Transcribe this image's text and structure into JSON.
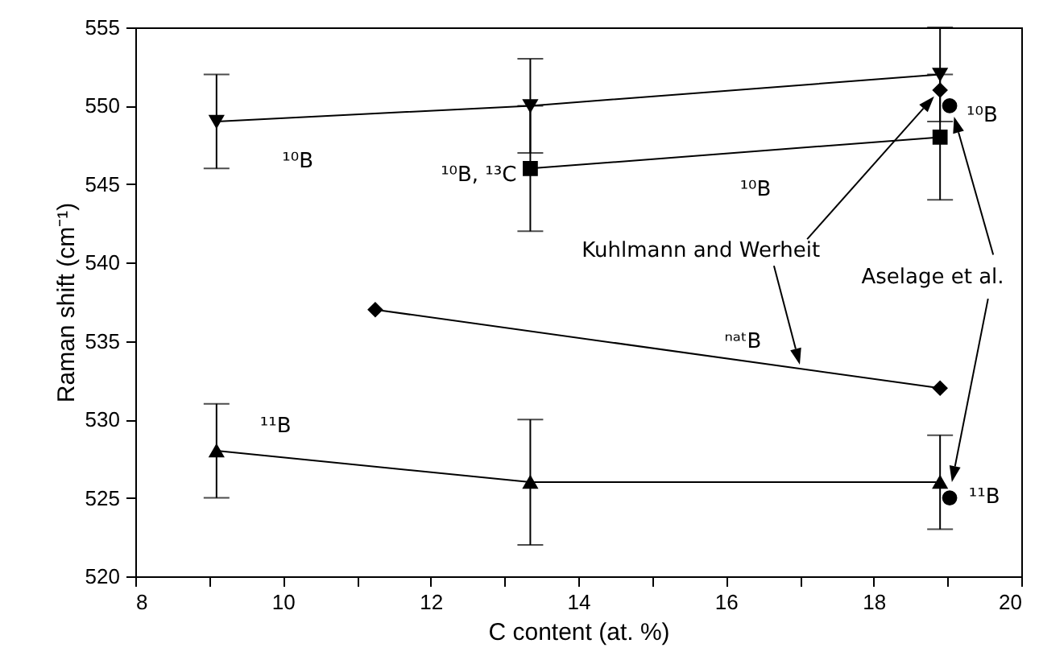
{
  "chart_data": {
    "type": "line",
    "xlabel": "C content (at. %)",
    "ylabel": "Raman shift (cm⁻¹)",
    "xlim": [
      8,
      20
    ],
    "xticks": [
      8,
      {
        "value": 9,
        "label": null
      },
      10,
      {
        "value": 11,
        "label": null
      },
      12,
      {
        "value": 13,
        "label": null
      },
      14,
      {
        "value": 15,
        "label": null
      },
      16,
      {
        "value": 17,
        "label": null
      },
      18,
      {
        "value": 19,
        "label": null
      },
      20
    ],
    "ylim": [
      520,
      555
    ],
    "yticks": [
      520,
      525,
      530,
      535,
      540,
      545,
      550,
      555
    ],
    "grid": false,
    "series": [
      {
        "type": "line",
        "marker": "triangle-down",
        "color": "#000000",
        "x": [
          9.1,
          13.35,
          18.9
        ],
        "values": [
          549,
          550,
          552
        ],
        "errors": [
          3,
          3,
          3
        ]
      },
      {
        "type": "line",
        "marker": "square",
        "color": "#000000",
        "x": [
          13.35,
          18.9
        ],
        "values": [
          546,
          548
        ],
        "errors": [
          4,
          4
        ]
      },
      {
        "type": "line",
        "marker": "diamond",
        "color": "#000000",
        "x": [
          11.25,
          18.9
        ],
        "values": [
          537,
          532
        ]
      },
      {
        "type": "line",
        "marker": "triangle",
        "color": "#000000",
        "x": [
          9.1,
          13.35,
          18.9
        ],
        "values": [
          528,
          526,
          526
        ],
        "errors": [
          3,
          4,
          3
        ]
      },
      {
        "type": "scatter",
        "marker": "diamond",
        "color": "#000000",
        "x": [
          18.9
        ],
        "values": [
          551
        ]
      },
      {
        "type": "scatter",
        "marker": "circle",
        "color": "#000000",
        "x": [
          19.03,
          19.03
        ],
        "values": [
          550,
          525
        ]
      }
    ],
    "annotations": [
      "¹⁰B",
      "¹⁰B, ¹³C",
      "¹⁰B",
      "Kuhlmann and Werheit",
      "ⁿᵃᵗB",
      "Aselage et al.",
      "¹⁰B",
      "¹¹B",
      "¹¹B"
    ]
  }
}
